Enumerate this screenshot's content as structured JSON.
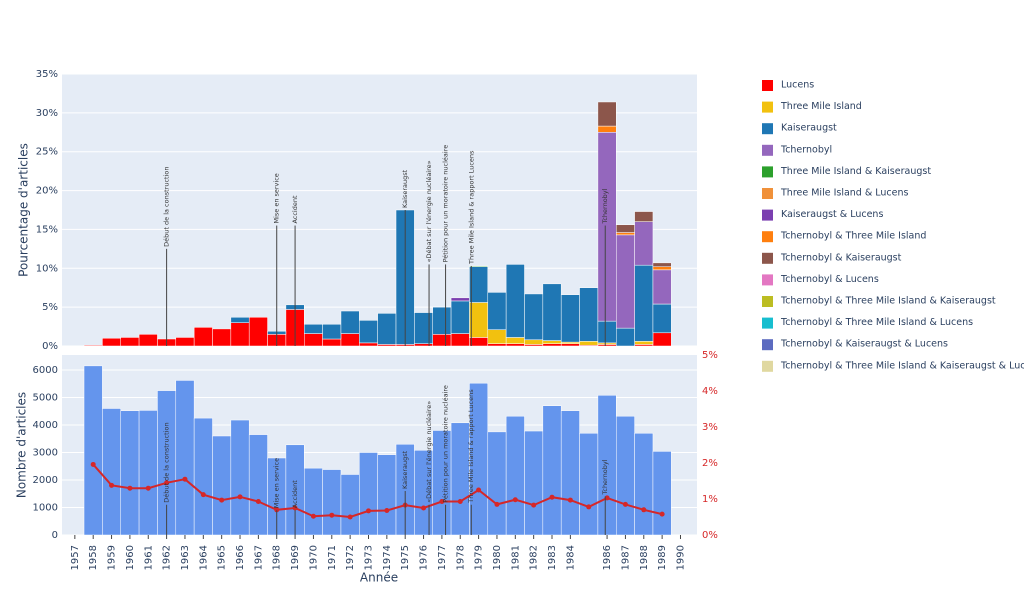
{
  "chart_data": [
    {
      "type": "stacked_bar",
      "ylabel": "Pourcentage d'articles",
      "x": [
        1958,
        1959,
        1960,
        1961,
        1962,
        1963,
        1964,
        1965,
        1966,
        1967,
        1968,
        1969,
        1970,
        1971,
        1972,
        1973,
        1974,
        1975,
        1976,
        1977,
        1978,
        1979,
        1980,
        1981,
        1982,
        1983,
        1984,
        1985,
        1986,
        1987,
        1988,
        1989
      ],
      "xlim": [
        1956.3,
        1990.9
      ],
      "ylim": [
        0,
        35
      ],
      "yticks": [
        {
          "value": 0,
          "label": "0%"
        },
        {
          "value": 5,
          "label": "5%"
        },
        {
          "value": 10,
          "label": "10%"
        },
        {
          "value": 15,
          "label": "15%"
        },
        {
          "value": 20,
          "label": "20%"
        },
        {
          "value": 25,
          "label": "25%"
        },
        {
          "value": 30,
          "label": "30%"
        },
        {
          "value": 35,
          "label": "35%"
        }
      ],
      "grid": true,
      "series": [
        {
          "name": "Lucens",
          "color": "#ff0000",
          "values": [
            0.1,
            1.0,
            1.1,
            1.5,
            0.9,
            1.1,
            2.4,
            2.2,
            3.0,
            3.7,
            1.5,
            4.7,
            1.6,
            0.9,
            1.6,
            0.4,
            0.2,
            0.2,
            0.3,
            1.5,
            1.6,
            1.1,
            0.3,
            0.3,
            0.2,
            0.3,
            0.3,
            0.1,
            0.2,
            0.0,
            0.2,
            1.7
          ]
        },
        {
          "name": "Three Mile Island",
          "color": "#f2c10f",
          "values": [
            0,
            0,
            0,
            0,
            0,
            0,
            0,
            0,
            0,
            0,
            0,
            0,
            0,
            0,
            0,
            0,
            0,
            0,
            0,
            0,
            0,
            4.5,
            1.8,
            0.8,
            0.6,
            0.4,
            0.2,
            0.5,
            0.2,
            0,
            0.4,
            0
          ]
        },
        {
          "name": "Kaiseraugst",
          "color": "#1f77b4",
          "values": [
            0,
            0,
            0,
            0,
            0,
            0,
            0,
            0,
            0.7,
            0,
            0.4,
            0.6,
            1.2,
            1.9,
            2.9,
            2.9,
            4.0,
            17.3,
            4.0,
            3.5,
            4.2,
            4.6,
            4.8,
            9.4,
            5.9,
            7.3,
            6.1,
            6.9,
            2.8,
            2.3,
            9.8,
            3.7
          ]
        },
        {
          "name": "Tchernobyl",
          "color": "#9467bd",
          "values": [
            0,
            0,
            0,
            0,
            0,
            0,
            0,
            0,
            0,
            0,
            0,
            0,
            0,
            0,
            0,
            0,
            0,
            0,
            0,
            0,
            0,
            0,
            0,
            0,
            0,
            0,
            0,
            0,
            24.3,
            12.0,
            5.6,
            4.4
          ]
        },
        {
          "name": "Three Mile Island & Kaiseraugst",
          "color": "#2ca02c",
          "values": [
            0,
            0,
            0,
            0,
            0,
            0,
            0,
            0,
            0,
            0,
            0,
            0,
            0,
            0,
            0,
            0,
            0,
            0,
            0,
            0,
            0,
            0.1,
            0,
            0,
            0,
            0,
            0,
            0,
            0,
            0,
            0,
            0
          ]
        },
        {
          "name": "Three Mile Island & Lucens",
          "color": "#f0913a",
          "values": [
            0,
            0,
            0,
            0,
            0,
            0,
            0,
            0,
            0,
            0,
            0,
            0,
            0,
            0,
            0,
            0,
            0,
            0,
            0,
            0,
            0,
            0,
            0,
            0,
            0,
            0,
            0,
            0,
            0,
            0,
            0,
            0
          ]
        },
        {
          "name": "Kaiseraugst & Lucens",
          "color": "#7b3fb0",
          "values": [
            0,
            0,
            0,
            0,
            0,
            0,
            0,
            0,
            0,
            0,
            0,
            0,
            0,
            0,
            0,
            0,
            0,
            0,
            0,
            0,
            0.4,
            0,
            0,
            0,
            0,
            0,
            0,
            0,
            0,
            0,
            0,
            0
          ]
        },
        {
          "name": "Tchernobyl & Three Mile Island",
          "color": "#ff7f0e",
          "values": [
            0,
            0,
            0,
            0,
            0,
            0,
            0,
            0,
            0,
            0,
            0,
            0,
            0,
            0,
            0,
            0,
            0,
            0,
            0,
            0,
            0,
            0,
            0,
            0,
            0,
            0,
            0,
            0,
            0.8,
            0.3,
            0,
            0.4
          ]
        },
        {
          "name": "Tchernobyl & Kaiseraugst",
          "color": "#8c564b",
          "values": [
            0,
            0,
            0,
            0,
            0,
            0,
            0,
            0,
            0,
            0,
            0,
            0,
            0,
            0,
            0,
            0,
            0,
            0,
            0,
            0,
            0,
            0,
            0,
            0,
            0,
            0,
            0,
            0,
            3.1,
            1.0,
            1.3,
            0.5
          ]
        },
        {
          "name": "Tchernobyl & Lucens",
          "color": "#e377c2",
          "values": [
            0,
            0,
            0,
            0,
            0,
            0,
            0,
            0,
            0,
            0,
            0,
            0,
            0,
            0,
            0,
            0,
            0,
            0,
            0,
            0,
            0,
            0,
            0,
            0,
            0,
            0,
            0,
            0,
            0,
            0,
            0,
            0
          ]
        },
        {
          "name": "Tchernobyl & Three Mile Island & Kaiseraugst",
          "color": "#bcbd22",
          "values": [
            0,
            0,
            0,
            0,
            0,
            0,
            0,
            0,
            0,
            0,
            0,
            0,
            0,
            0,
            0,
            0,
            0,
            0,
            0,
            0,
            0,
            0,
            0,
            0,
            0,
            0,
            0,
            0,
            0,
            0,
            0,
            0
          ]
        },
        {
          "name": "Tchernobyl & Three Mile Island & Lucens",
          "color": "#17becf",
          "values": [
            0,
            0,
            0,
            0,
            0,
            0,
            0,
            0,
            0,
            0,
            0,
            0,
            0,
            0,
            0,
            0,
            0,
            0,
            0,
            0,
            0,
            0,
            0,
            0,
            0,
            0,
            0,
            0,
            0,
            0,
            0,
            0
          ]
        },
        {
          "name": "Tchernobyl & Kaiseraugst & Lucens",
          "color": "#5c6bc0",
          "values": [
            0,
            0,
            0,
            0,
            0,
            0,
            0,
            0,
            0,
            0,
            0,
            0,
            0,
            0,
            0,
            0,
            0,
            0,
            0,
            0,
            0,
            0,
            0,
            0,
            0,
            0,
            0,
            0,
            0,
            0,
            0,
            0
          ]
        },
        {
          "name": "Tchernobyl & Three Mile Island & Kaiseraugst & Lucens",
          "color": "#e0d8a0",
          "values": [
            0,
            0,
            0,
            0,
            0,
            0,
            0,
            0,
            0,
            0,
            0,
            0,
            0,
            0,
            0,
            0,
            0,
            0,
            0,
            0,
            0,
            0,
            0,
            0,
            0,
            0,
            0,
            0,
            0,
            0,
            0,
            0
          ]
        }
      ],
      "annotations": [
        {
          "x": 1962,
          "y": 12.5,
          "text": "Début de la construction"
        },
        {
          "x": 1968,
          "y": 15.5,
          "text": "Mise en service"
        },
        {
          "x": 1969,
          "y": 15.5,
          "text": "Accident"
        },
        {
          "x": 1975,
          "y": 17.5,
          "text": "Kaiseraugst"
        },
        {
          "x": 1976.3,
          "y": 10.5,
          "text": "«Débat sur l'énergie nucléaire»"
        },
        {
          "x": 1977.2,
          "y": 10.5,
          "text": "Pétition pour un moratoire nucléaire"
        },
        {
          "x": 1978.6,
          "y": 10.3,
          "text": "Three Mile Island & rapport Lucens"
        },
        {
          "x": 1985.9,
          "y": 15.5,
          "text": "Tchernobyl"
        }
      ]
    },
    {
      "type": "bar_line",
      "ylabel": "Nombre d'articles",
      "xlabel": "Année",
      "x": [
        1958,
        1959,
        1960,
        1961,
        1962,
        1963,
        1964,
        1965,
        1966,
        1967,
        1968,
        1969,
        1970,
        1971,
        1972,
        1973,
        1974,
        1975,
        1976,
        1977,
        1978,
        1979,
        1980,
        1981,
        1982,
        1983,
        1984,
        1985,
        1986,
        1987,
        1988,
        1989
      ],
      "xlim": [
        1956.3,
        1990.9
      ],
      "ylim": [
        0,
        6545
      ],
      "y2lim": [
        0,
        5
      ],
      "yticks": [
        0,
        1000,
        2000,
        3000,
        4000,
        5000,
        6000
      ],
      "y2ticks": [
        {
          "value": 0,
          "label": "0%"
        },
        {
          "value": 1,
          "label": "1%"
        },
        {
          "value": 2,
          "label": "2%"
        },
        {
          "value": 3,
          "label": "3%"
        },
        {
          "value": 4,
          "label": "4%"
        },
        {
          "value": 5,
          "label": "5%"
        }
      ],
      "y2color": "#d62728",
      "xticks": [
        1957,
        1958,
        1959,
        1960,
        1961,
        1962,
        1963,
        1964,
        1965,
        1966,
        1967,
        1968,
        1969,
        1970,
        1971,
        1972,
        1973,
        1974,
        1975,
        1976,
        1977,
        1978,
        1979,
        1980,
        1981,
        1982,
        1983,
        1984,
        1986,
        1987,
        1988,
        1989,
        1990
      ],
      "grid": true,
      "series": [
        {
          "type": "bar",
          "color": "#6495ed",
          "values": [
            6150,
            4600,
            4520,
            4530,
            5250,
            5620,
            4250,
            3600,
            4180,
            3650,
            2800,
            3280,
            2430,
            2380,
            2200,
            3000,
            2920,
            3300,
            3080,
            3800,
            4080,
            5520,
            3750,
            4320,
            3780,
            4700,
            4520,
            3700,
            5080,
            4320,
            3700,
            3040
          ]
        },
        {
          "type": "line",
          "axis": "y2",
          "color": "#d62728",
          "values": [
            1.96,
            1.38,
            1.3,
            1.3,
            1.45,
            1.55,
            1.12,
            0.97,
            1.06,
            0.93,
            0.7,
            0.75,
            0.52,
            0.55,
            0.5,
            0.67,
            0.68,
            0.83,
            0.75,
            0.93,
            0.93,
            1.25,
            0.85,
            0.98,
            0.83,
            1.05,
            0.97,
            0.78,
            1.03,
            0.85,
            0.7,
            0.58
          ]
        }
      ],
      "annotations": [
        {
          "x": 1962,
          "y": 1100,
          "text": "Début de la construction"
        },
        {
          "x": 1968,
          "y": 900,
          "text": "Mise en service"
        },
        {
          "x": 1969,
          "y": 900,
          "text": "Accident"
        },
        {
          "x": 1975,
          "y": 1600,
          "text": "Kaiseraugst"
        },
        {
          "x": 1976.3,
          "y": 1100,
          "text": "«Débat sur l'énergie nucléaire»"
        },
        {
          "x": 1977.2,
          "y": 1100,
          "text": "Pétition pour un moratoire nucléaire"
        },
        {
          "x": 1978.6,
          "y": 1100,
          "text": "Three Mile Island & rapport Lucens"
        },
        {
          "x": 1985.9,
          "y": 1400,
          "text": "Tchernobyl"
        }
      ]
    }
  ]
}
